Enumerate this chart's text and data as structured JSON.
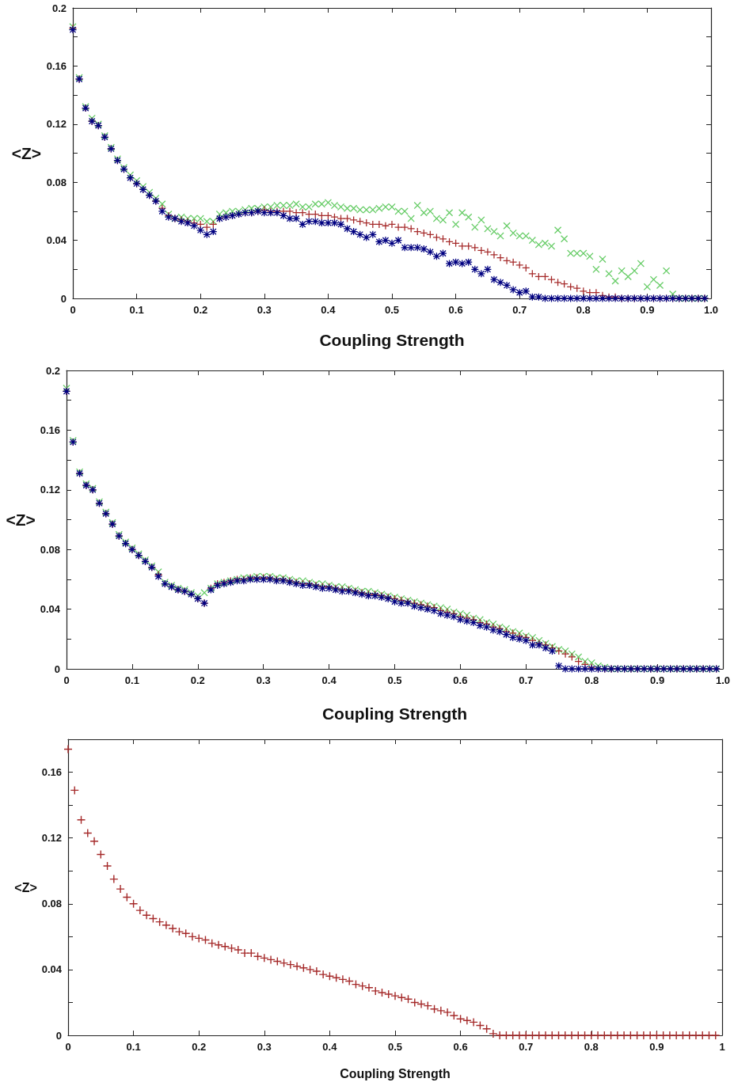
{
  "chart_data": [
    {
      "type": "scatter",
      "xlabel": "Coupling Strength",
      "ylabel": "<Z>",
      "xlim": [
        0,
        1
      ],
      "ylim": [
        0,
        0.2
      ],
      "xticks": [
        0,
        0.1,
        0.2,
        0.3,
        0.4,
        0.5,
        0.6,
        0.7,
        0.8,
        0.9,
        {
          "value": 1,
          "label": "1.0"
        }
      ],
      "yticks": [
        0,
        {
          "value": 0.02,
          "label": null
        },
        0.04,
        {
          "value": 0.06,
          "label": null
        },
        0.08,
        {
          "value": 0.1,
          "label": null
        },
        0.12,
        {
          "value": 0.14,
          "label": null
        },
        0.16,
        {
          "value": 0.18,
          "label": null
        },
        0.2
      ],
      "grid": false,
      "x": [
        0,
        0.01,
        0.02,
        0.03,
        0.04,
        0.05,
        0.06,
        0.07,
        0.08,
        0.09,
        0.1,
        0.11,
        0.12,
        0.13,
        0.14,
        0.15,
        0.16,
        0.17,
        0.18,
        0.19,
        0.2,
        0.21,
        0.22,
        0.23,
        0.24,
        0.25,
        0.26,
        0.27,
        0.28,
        0.29,
        0.3,
        0.31,
        0.32,
        0.33,
        0.34,
        0.35,
        0.36,
        0.37,
        0.38,
        0.39,
        0.4,
        0.41,
        0.42,
        0.43,
        0.44,
        0.45,
        0.46,
        0.47,
        0.48,
        0.49,
        0.5,
        0.51,
        0.52,
        0.53,
        0.54,
        0.55,
        0.56,
        0.57,
        0.58,
        0.59,
        0.6,
        0.61,
        0.62,
        0.63,
        0.64,
        0.65,
        0.66,
        0.67,
        0.68,
        0.69,
        0.7,
        0.71,
        0.72,
        0.73,
        0.74,
        0.75,
        0.76,
        0.77,
        0.78,
        0.79,
        0.8,
        0.81,
        0.82,
        0.83,
        0.84,
        0.85,
        0.86,
        0.87,
        0.88,
        0.89,
        0.9,
        0.91,
        0.92,
        0.93,
        0.94,
        0.95,
        0.96,
        0.97,
        0.98,
        0.99
      ],
      "series": [
        {
          "color": "#66cc66",
          "marker": "x",
          "values": [
            0.187,
            0.152,
            0.132,
            0.124,
            0.12,
            0.112,
            0.104,
            0.096,
            0.09,
            0.085,
            0.081,
            0.077,
            0.073,
            0.069,
            0.065,
            0.058,
            0.055,
            0.056,
            0.055,
            0.055,
            0.055,
            0.053,
            0.053,
            0.058,
            0.059,
            0.06,
            0.06,
            0.061,
            0.062,
            0.062,
            0.063,
            0.063,
            0.064,
            0.064,
            0.064,
            0.065,
            0.063,
            0.063,
            0.065,
            0.065,
            0.066,
            0.064,
            0.063,
            0.062,
            0.062,
            0.061,
            0.061,
            0.061,
            0.062,
            0.063,
            0.063,
            0.06,
            0.06,
            0.055,
            0.064,
            0.059,
            0.06,
            0.055,
            0.054,
            0.059,
            0.051,
            0.059,
            0.056,
            0.049,
            0.054,
            0.048,
            0.046,
            0.043,
            0.05,
            0.045,
            0.043,
            0.043,
            0.04,
            0.037,
            0.038,
            0.036,
            0.047,
            0.041,
            0.031,
            0.031,
            0.031,
            0.029,
            0.02,
            0.027,
            0.017,
            0.012,
            0.019,
            0.015,
            0.019,
            0.024,
            0.008,
            0.013,
            0.009,
            0.019,
            0.003,
            0,
            0,
            0,
            0,
            0
          ]
        },
        {
          "color": "#a52a2a",
          "marker": "cross",
          "values": [
            0.186,
            0.151,
            0.131,
            0.122,
            0.119,
            0.111,
            0.103,
            0.095,
            0.089,
            0.083,
            0.079,
            0.075,
            0.071,
            0.067,
            0.062,
            0.057,
            0.055,
            0.054,
            0.053,
            0.052,
            0.051,
            0.049,
            0.051,
            0.055,
            0.056,
            0.057,
            0.058,
            0.059,
            0.059,
            0.06,
            0.061,
            0.06,
            0.06,
            0.06,
            0.06,
            0.059,
            0.059,
            0.058,
            0.058,
            0.057,
            0.057,
            0.056,
            0.055,
            0.055,
            0.054,
            0.053,
            0.052,
            0.051,
            0.051,
            0.05,
            0.051,
            0.049,
            0.049,
            0.048,
            0.046,
            0.045,
            0.044,
            0.042,
            0.041,
            0.039,
            0.038,
            0.036,
            0.036,
            0.035,
            0.033,
            0.032,
            0.03,
            0.028,
            0.026,
            0.025,
            0.023,
            0.021,
            0.017,
            0.015,
            0.015,
            0.013,
            0.011,
            0.01,
            0.008,
            0.007,
            0.005,
            0.004,
            0.004,
            0.002,
            0.001,
            0.001,
            0,
            0,
            0,
            0,
            0,
            0,
            0,
            0,
            0,
            0,
            0,
            0,
            0,
            0
          ]
        },
        {
          "color": "#000080",
          "marker": "star",
          "values": [
            0.185,
            0.151,
            0.131,
            0.122,
            0.119,
            0.111,
            0.103,
            0.095,
            0.089,
            0.083,
            0.079,
            0.075,
            0.071,
            0.067,
            0.06,
            0.056,
            0.055,
            0.053,
            0.052,
            0.05,
            0.047,
            0.044,
            0.046,
            0.055,
            0.056,
            0.057,
            0.058,
            0.059,
            0.059,
            0.06,
            0.059,
            0.059,
            0.059,
            0.057,
            0.055,
            0.055,
            0.051,
            0.053,
            0.053,
            0.052,
            0.052,
            0.052,
            0.051,
            0.048,
            0.046,
            0.044,
            0.042,
            0.044,
            0.039,
            0.04,
            0.038,
            0.04,
            0.035,
            0.035,
            0.035,
            0.034,
            0.032,
            0.029,
            0.031,
            0.024,
            0.025,
            0.024,
            0.025,
            0.02,
            0.017,
            0.02,
            0.013,
            0.011,
            0.009,
            0.006,
            0.004,
            0.005,
            0.001,
            0.001,
            0,
            0,
            0,
            0,
            0,
            0,
            0,
            0,
            0,
            0,
            0,
            0,
            0,
            0,
            0,
            0,
            0,
            0,
            0,
            0,
            0,
            0,
            0,
            0,
            0,
            0
          ]
        }
      ]
    },
    {
      "type": "scatter",
      "xlabel": "Coupling Strength",
      "ylabel": "<Z>",
      "xlim": [
        0,
        1
      ],
      "ylim": [
        0,
        0.2
      ],
      "xticks": [
        0,
        0.1,
        0.2,
        0.3,
        0.4,
        0.5,
        0.6,
        0.7,
        0.8,
        0.9,
        {
          "value": 1,
          "label": "1.0"
        }
      ],
      "yticks": [
        0,
        {
          "value": 0.02,
          "label": null
        },
        0.04,
        {
          "value": 0.06,
          "label": null
        },
        0.08,
        {
          "value": 0.1,
          "label": null
        },
        0.12,
        {
          "value": 0.14,
          "label": null
        },
        0.16,
        {
          "value": 0.18,
          "label": null
        },
        0.2
      ],
      "grid": false,
      "x": [
        0,
        0.01,
        0.02,
        0.03,
        0.04,
        0.05,
        0.06,
        0.07,
        0.08,
        0.09,
        0.1,
        0.11,
        0.12,
        0.13,
        0.14,
        0.15,
        0.16,
        0.17,
        0.18,
        0.19,
        0.2,
        0.21,
        0.22,
        0.23,
        0.24,
        0.25,
        0.26,
        0.27,
        0.28,
        0.29,
        0.3,
        0.31,
        0.32,
        0.33,
        0.34,
        0.35,
        0.36,
        0.37,
        0.38,
        0.39,
        0.4,
        0.41,
        0.42,
        0.43,
        0.44,
        0.45,
        0.46,
        0.47,
        0.48,
        0.49,
        0.5,
        0.51,
        0.52,
        0.53,
        0.54,
        0.55,
        0.56,
        0.57,
        0.58,
        0.59,
        0.6,
        0.61,
        0.62,
        0.63,
        0.64,
        0.65,
        0.66,
        0.67,
        0.68,
        0.69,
        0.7,
        0.71,
        0.72,
        0.73,
        0.74,
        0.75,
        0.76,
        0.77,
        0.78,
        0.79,
        0.8,
        0.81,
        0.82,
        0.83,
        0.84,
        0.85,
        0.86,
        0.87,
        0.88,
        0.89,
        0.9,
        0.91,
        0.92,
        0.93,
        0.94,
        0.95,
        0.96,
        0.97,
        0.98,
        0.99
      ],
      "series": [
        {
          "color": "#66cc66",
          "marker": "x",
          "values": [
            0.188,
            0.153,
            0.132,
            0.124,
            0.121,
            0.112,
            0.105,
            0.098,
            0.09,
            0.085,
            0.081,
            0.077,
            0.073,
            0.069,
            0.065,
            0.058,
            0.056,
            0.054,
            0.053,
            0.051,
            0.049,
            0.051,
            0.054,
            0.057,
            0.058,
            0.059,
            0.06,
            0.061,
            0.061,
            0.062,
            0.062,
            0.062,
            0.061,
            0.061,
            0.06,
            0.059,
            0.059,
            0.058,
            0.057,
            0.057,
            0.056,
            0.055,
            0.055,
            0.054,
            0.053,
            0.052,
            0.052,
            0.051,
            0.05,
            0.049,
            0.048,
            0.047,
            0.046,
            0.045,
            0.044,
            0.043,
            0.042,
            0.041,
            0.04,
            0.038,
            0.037,
            0.036,
            0.034,
            0.033,
            0.031,
            0.03,
            0.028,
            0.027,
            0.025,
            0.024,
            0.022,
            0.021,
            0.019,
            0.017,
            0.015,
            0.013,
            0.012,
            0.01,
            0.008,
            0.005,
            0.004,
            0.002,
            0.001,
            0,
            0,
            0,
            0,
            0,
            0,
            0,
            0,
            0,
            0,
            0,
            0,
            0,
            0,
            0,
            0,
            0
          ]
        },
        {
          "color": "#a52a2a",
          "marker": "cross",
          "values": [
            0.186,
            0.152,
            0.131,
            0.123,
            0.12,
            0.111,
            0.104,
            0.097,
            0.089,
            0.084,
            0.08,
            0.076,
            0.072,
            0.068,
            0.063,
            0.057,
            0.055,
            0.053,
            0.052,
            0.05,
            0.047,
            0.044,
            0.054,
            0.057,
            0.058,
            0.059,
            0.06,
            0.06,
            0.061,
            0.061,
            0.061,
            0.061,
            0.06,
            0.06,
            0.059,
            0.058,
            0.057,
            0.057,
            0.056,
            0.055,
            0.055,
            0.054,
            0.053,
            0.053,
            0.052,
            0.051,
            0.05,
            0.05,
            0.049,
            0.048,
            0.047,
            0.046,
            0.045,
            0.044,
            0.043,
            0.042,
            0.041,
            0.039,
            0.038,
            0.037,
            0.035,
            0.034,
            0.033,
            0.031,
            0.03,
            0.028,
            0.027,
            0.025,
            0.024,
            0.022,
            0.021,
            0.019,
            0.017,
            0.016,
            0.014,
            0.012,
            0.01,
            0.008,
            0.005,
            0.003,
            0.001,
            0,
            0,
            0,
            0,
            0,
            0,
            0,
            0,
            0,
            0,
            0,
            0,
            0,
            0,
            0,
            0,
            0,
            0,
            0
          ]
        },
        {
          "color": "#000080",
          "marker": "star",
          "values": [
            0.186,
            0.152,
            0.131,
            0.123,
            0.12,
            0.111,
            0.104,
            0.097,
            0.089,
            0.084,
            0.08,
            0.076,
            0.072,
            0.068,
            0.062,
            0.057,
            0.055,
            0.053,
            0.052,
            0.05,
            0.047,
            0.044,
            0.053,
            0.056,
            0.057,
            0.058,
            0.059,
            0.059,
            0.06,
            0.06,
            0.06,
            0.06,
            0.059,
            0.059,
            0.058,
            0.057,
            0.056,
            0.056,
            0.055,
            0.054,
            0.054,
            0.053,
            0.052,
            0.052,
            0.051,
            0.05,
            0.049,
            0.049,
            0.048,
            0.047,
            0.045,
            0.044,
            0.044,
            0.042,
            0.041,
            0.04,
            0.039,
            0.037,
            0.036,
            0.035,
            0.033,
            0.032,
            0.031,
            0.029,
            0.028,
            0.026,
            0.025,
            0.023,
            0.021,
            0.02,
            0.019,
            0.016,
            0.016,
            0.014,
            0.012,
            0.002,
            0,
            0,
            0,
            0,
            0,
            0,
            0,
            0,
            0,
            0,
            0,
            0,
            0,
            0,
            0,
            0,
            0,
            0,
            0,
            0,
            0,
            0,
            0,
            0
          ]
        }
      ]
    },
    {
      "type": "scatter",
      "xlabel": "Coupling Strength",
      "ylabel": "<Z>",
      "xlim": [
        0,
        1
      ],
      "ylim": [
        0,
        0.18
      ],
      "xticks": [
        0,
        0.1,
        0.2,
        0.3,
        0.4,
        0.5,
        0.6,
        0.7,
        0.8,
        0.9,
        1
      ],
      "yticks": [
        0,
        {
          "value": 0.02,
          "label": null
        },
        0.04,
        {
          "value": 0.06,
          "label": null
        },
        0.08,
        {
          "value": 0.1,
          "label": null
        },
        0.12,
        {
          "value": 0.14,
          "label": null
        },
        0.16
      ],
      "grid": false,
      "x": [
        0,
        0.01,
        0.02,
        0.03,
        0.04,
        0.05,
        0.06,
        0.07,
        0.08,
        0.09,
        0.1,
        0.11,
        0.12,
        0.13,
        0.14,
        0.15,
        0.16,
        0.17,
        0.18,
        0.19,
        0.2,
        0.21,
        0.22,
        0.23,
        0.24,
        0.25,
        0.26,
        0.27,
        0.28,
        0.29,
        0.3,
        0.31,
        0.32,
        0.33,
        0.34,
        0.35,
        0.36,
        0.37,
        0.38,
        0.39,
        0.4,
        0.41,
        0.42,
        0.43,
        0.44,
        0.45,
        0.46,
        0.47,
        0.48,
        0.49,
        0.5,
        0.51,
        0.52,
        0.53,
        0.54,
        0.55,
        0.56,
        0.57,
        0.58,
        0.59,
        0.6,
        0.61,
        0.62,
        0.63,
        0.64,
        0.65,
        0.66,
        0.67,
        0.68,
        0.69,
        0.7,
        0.71,
        0.72,
        0.73,
        0.74,
        0.75,
        0.76,
        0.77,
        0.78,
        0.79,
        0.8,
        0.81,
        0.82,
        0.83,
        0.84,
        0.85,
        0.86,
        0.87,
        0.88,
        0.89,
        0.9,
        0.91,
        0.92,
        0.93,
        0.94,
        0.95,
        0.96,
        0.97,
        0.98,
        0.99
      ],
      "series": [
        {
          "color": "#a52a2a",
          "marker": "cross",
          "values": [
            0.174,
            0.149,
            0.131,
            0.123,
            0.118,
            0.11,
            0.103,
            0.095,
            0.089,
            0.084,
            0.08,
            0.076,
            0.073,
            0.071,
            0.069,
            0.067,
            0.065,
            0.063,
            0.062,
            0.06,
            0.059,
            0.058,
            0.056,
            0.055,
            0.054,
            0.053,
            0.052,
            0.05,
            0.05,
            0.048,
            0.047,
            0.046,
            0.045,
            0.044,
            0.043,
            0.042,
            0.041,
            0.04,
            0.039,
            0.037,
            0.036,
            0.035,
            0.034,
            0.033,
            0.031,
            0.03,
            0.029,
            0.027,
            0.026,
            0.025,
            0.024,
            0.023,
            0.022,
            0.02,
            0.019,
            0.018,
            0.016,
            0.015,
            0.014,
            0.012,
            0.01,
            0.009,
            0.008,
            0.006,
            0.004,
            0.001,
            0,
            0,
            0,
            0,
            0,
            0,
            0,
            0,
            0,
            0,
            0,
            0,
            0,
            0,
            0,
            0,
            0,
            0,
            0,
            0,
            0,
            0,
            0,
            0,
            0,
            0,
            0,
            0,
            0,
            0,
            0,
            0,
            0,
            0
          ]
        }
      ]
    }
  ]
}
